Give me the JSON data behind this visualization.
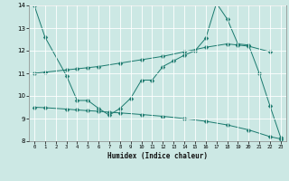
{
  "xlabel": "Humidex (Indice chaleur)",
  "bg_color": "#cce8e4",
  "line_color": "#1a7a6e",
  "grid_color": "#ffffff",
  "xlim": [
    -0.5,
    23.5
  ],
  "ylim": [
    8,
    14
  ],
  "yticks": [
    8,
    9,
    10,
    11,
    12,
    13,
    14
  ],
  "xticks": [
    0,
    1,
    2,
    3,
    4,
    5,
    6,
    7,
    8,
    9,
    10,
    11,
    12,
    13,
    14,
    15,
    16,
    17,
    18,
    19,
    20,
    21,
    22,
    23
  ],
  "line1_x": [
    0,
    1,
    3,
    4,
    5,
    6,
    7,
    8,
    9,
    10,
    11,
    12,
    13,
    14,
    15,
    16,
    17,
    18,
    19,
    20,
    21,
    22,
    23
  ],
  "line1_y": [
    14.0,
    12.6,
    10.9,
    9.8,
    9.8,
    9.45,
    9.15,
    9.45,
    9.9,
    10.7,
    10.7,
    11.3,
    11.55,
    11.8,
    12.0,
    12.55,
    14.1,
    13.4,
    12.3,
    12.25,
    11.0,
    9.55,
    8.15
  ],
  "line2_x": [
    0,
    1,
    3,
    4,
    5,
    6,
    8,
    10,
    12,
    14,
    16,
    18,
    19,
    20,
    22
  ],
  "line2_y": [
    11.0,
    11.05,
    11.15,
    11.2,
    11.25,
    11.3,
    11.45,
    11.6,
    11.75,
    11.95,
    12.15,
    12.3,
    12.25,
    12.2,
    11.95
  ],
  "line3_x": [
    0,
    1,
    3,
    4,
    5,
    6,
    7,
    8,
    10,
    12,
    14,
    16,
    18,
    20,
    22,
    23
  ],
  "line3_y": [
    9.5,
    9.48,
    9.42,
    9.38,
    9.35,
    9.32,
    9.28,
    9.25,
    9.18,
    9.1,
    9.0,
    8.88,
    8.72,
    8.5,
    8.2,
    8.1
  ],
  "markersize": 2.5
}
